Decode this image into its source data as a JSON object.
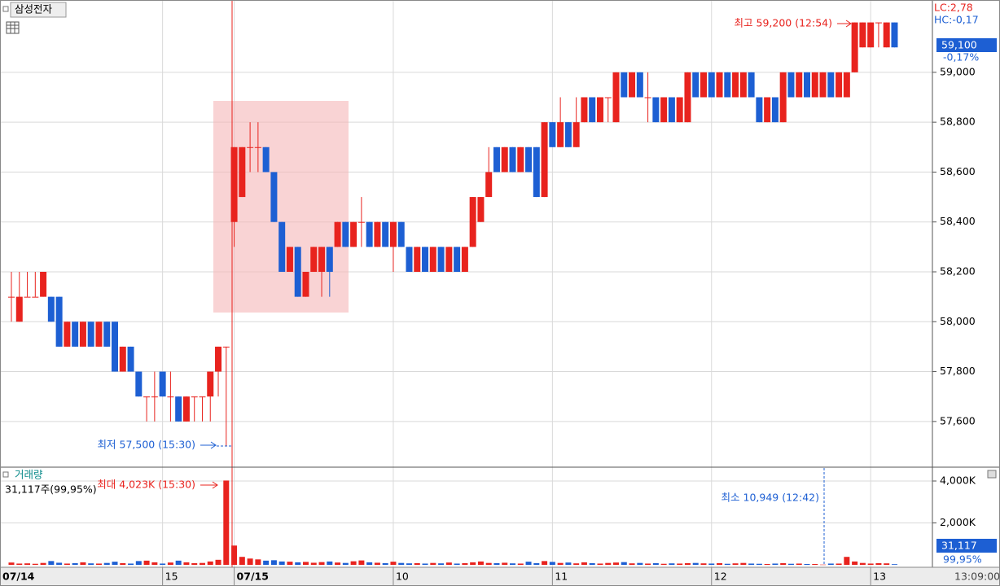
{
  "chart_data": [
    {
      "type": "candlestick",
      "title": "삼성전자",
      "legend": [
        "LC:2,78",
        "HC:-0,17"
      ],
      "last_price_label": "59,100",
      "change_label": "-0,17%",
      "cursor_time": "13:09:00",
      "high_annotation": "최고 59,200 (12:54)",
      "low_annotation": "최저 57,500 (15:30)",
      "up_color": "#e8231e",
      "down_color": "#1d5fd3",
      "categories": [
        "07/14",
        null,
        null,
        null,
        null,
        null,
        null,
        null,
        null,
        null,
        null,
        null,
        null,
        null,
        null,
        null,
        null,
        null,
        null,
        "15",
        null,
        null,
        null,
        null,
        null,
        null,
        null,
        null,
        "07/15",
        null,
        null,
        null,
        null,
        null,
        null,
        null,
        null,
        null,
        null,
        null,
        null,
        null,
        null,
        null,
        null,
        null,
        null,
        null,
        "10",
        null,
        null,
        null,
        null,
        null,
        null,
        null,
        null,
        null,
        null,
        null,
        null,
        null,
        null,
        null,
        null,
        null,
        null,
        null,
        "11",
        null,
        null,
        null,
        null,
        null,
        null,
        null,
        null,
        null,
        null,
        null,
        null,
        null,
        null,
        null,
        null,
        null,
        null,
        null,
        "12",
        null,
        null,
        null,
        null,
        null,
        null,
        null,
        null,
        null,
        null,
        null,
        null,
        null,
        null,
        null,
        null,
        null,
        null,
        null,
        "13",
        null,
        null,
        null
      ],
      "open": [
        58100,
        58000,
        58100,
        58100,
        58100,
        58100,
        58100,
        57900,
        58000,
        57900,
        58000,
        57900,
        58000,
        58000,
        57800,
        57900,
        57800,
        57700,
        57700,
        57800,
        57700,
        57700,
        57600,
        57700,
        57700,
        57700,
        57800,
        57900,
        58400,
        58500,
        58700,
        58700,
        58700,
        58600,
        58400,
        58200,
        58300,
        58100,
        58200,
        58200,
        58300,
        58300,
        58400,
        58300,
        58400,
        58400,
        58300,
        58400,
        58300,
        58400,
        58300,
        58200,
        58300,
        58200,
        58300,
        58200,
        58300,
        58200,
        58300,
        58400,
        58500,
        58700,
        58600,
        58700,
        58600,
        58700,
        58700,
        58500,
        58800,
        58700,
        58800,
        58700,
        58800,
        58900,
        58800,
        58900,
        58800,
        59000,
        58900,
        59000,
        58900,
        58900,
        58800,
        58900,
        58800,
        58800,
        59000,
        58900,
        59000,
        58900,
        59000,
        58900,
        58900,
        59000,
        58900,
        58800,
        58900,
        58800,
        59000,
        58900,
        59000,
        58900,
        58900,
        59000,
        58900,
        58900,
        59000,
        59100,
        59100,
        59200,
        59100,
        59200
      ],
      "high": [
        58200,
        58200,
        58200,
        58200,
        58200,
        58100,
        58100,
        58000,
        58000,
        58000,
        58000,
        58000,
        58000,
        58000,
        57900,
        57900,
        57800,
        57700,
        57800,
        57800,
        57800,
        57700,
        57700,
        57700,
        57700,
        57800,
        57900,
        57900,
        58700,
        58700,
        58800,
        58800,
        58700,
        58600,
        58400,
        58300,
        58300,
        58200,
        58300,
        58300,
        58300,
        58400,
        58400,
        58400,
        58500,
        58400,
        58400,
        58400,
        58400,
        58400,
        58300,
        58300,
        58300,
        58300,
        58300,
        58300,
        58300,
        58300,
        58500,
        58500,
        58700,
        58700,
        58700,
        58700,
        58700,
        58700,
        58700,
        58800,
        58800,
        58900,
        58800,
        58900,
        58900,
        58900,
        58900,
        58900,
        59000,
        59000,
        59000,
        59000,
        59000,
        58900,
        58900,
        58900,
        58900,
        59000,
        59000,
        59000,
        59000,
        59000,
        59000,
        59000,
        59000,
        59000,
        58900,
        58900,
        58900,
        59000,
        59000,
        59000,
        59000,
        59000,
        59000,
        59000,
        59000,
        59000,
        59200,
        59200,
        59200,
        59200,
        59200,
        59200
      ],
      "low": [
        58000,
        58000,
        58100,
        58100,
        58100,
        58000,
        57900,
        57900,
        57900,
        57900,
        57900,
        57900,
        57900,
        57800,
        57800,
        57800,
        57700,
        57600,
        57600,
        57700,
        57600,
        57600,
        57600,
        57600,
        57600,
        57600,
        57700,
        57500,
        58300,
        58500,
        58600,
        58600,
        58600,
        58400,
        58200,
        58200,
        58100,
        58100,
        58200,
        58100,
        58100,
        58300,
        58300,
        58300,
        58300,
        58300,
        58300,
        58300,
        58200,
        58300,
        58200,
        58200,
        58200,
        58200,
        58200,
        58200,
        58200,
        58200,
        58300,
        58400,
        58500,
        58600,
        58600,
        58600,
        58600,
        58600,
        58500,
        58500,
        58700,
        58700,
        58700,
        58700,
        58800,
        58800,
        58800,
        58800,
        58800,
        58900,
        58900,
        58900,
        58800,
        58800,
        58800,
        58800,
        58800,
        58800,
        58900,
        58900,
        58900,
        58900,
        58900,
        58900,
        58900,
        58900,
        58800,
        58800,
        58800,
        58800,
        58900,
        58900,
        58900,
        58900,
        58900,
        58900,
        58900,
        58900,
        59000,
        59100,
        59100,
        59100,
        59100,
        59100
      ],
      "close": [
        58100,
        58100,
        58100,
        58100,
        58200,
        58000,
        57900,
        58000,
        57900,
        58000,
        57900,
        58000,
        57900,
        57800,
        57900,
        57800,
        57700,
        57700,
        57700,
        57700,
        57700,
        57600,
        57700,
        57700,
        57700,
        57800,
        57900,
        57900,
        58700,
        58700,
        58700,
        58700,
        58600,
        58400,
        58200,
        58300,
        58100,
        58200,
        58300,
        58300,
        58200,
        58400,
        58300,
        58400,
        58400,
        58300,
        58400,
        58300,
        58400,
        58300,
        58200,
        58300,
        58200,
        58300,
        58200,
        58300,
        58200,
        58300,
        58500,
        58500,
        58600,
        58600,
        58700,
        58600,
        58700,
        58600,
        58500,
        58800,
        58700,
        58800,
        58700,
        58800,
        58900,
        58800,
        58900,
        58900,
        59000,
        58900,
        59000,
        58900,
        58900,
        58800,
        58900,
        58800,
        58900,
        59000,
        58900,
        59000,
        58900,
        59000,
        58900,
        59000,
        59000,
        58900,
        58800,
        58900,
        58800,
        59000,
        58900,
        59000,
        58900,
        59000,
        59000,
        58900,
        59000,
        59000,
        59200,
        59200,
        59200,
        59200,
        59200,
        59100
      ],
      "ylim": [
        57420,
        59290
      ],
      "yticks": [
        {
          "value": 57600,
          "label": "57,600"
        },
        {
          "value": 57800,
          "label": "57,800"
        },
        {
          "value": 58000,
          "label": "58,000"
        },
        {
          "value": 58200,
          "label": "58,200"
        },
        {
          "value": 58400,
          "label": "58,400"
        },
        {
          "value": 58600,
          "label": "58,600"
        },
        {
          "value": 58800,
          "label": "58,800"
        },
        {
          "value": 59000,
          "label": "59,000"
        }
      ],
      "grid": true
    },
    {
      "type": "bar",
      "title": "거래량",
      "info": "31,117주(99,95%)",
      "last_label": "31,117",
      "ratio_label": "99,95%",
      "max_annotation": "최대 4,023K (15:30)",
      "min_annotation": "최소 10,949 (12:42)",
      "values": [
        110,
        60,
        70,
        50,
        90,
        180,
        100,
        60,
        80,
        120,
        70,
        60,
        90,
        150,
        80,
        60,
        180,
        200,
        120,
        60,
        110,
        200,
        120,
        80,
        90,
        160,
        240,
        4023,
        920,
        380,
        300,
        260,
        200,
        220,
        160,
        150,
        120,
        140,
        100,
        130,
        160,
        110,
        90,
        170,
        210,
        120,
        100,
        80,
        150,
        90,
        70,
        80,
        60,
        90,
        70,
        110,
        60,
        80,
        120,
        160,
        90,
        80,
        100,
        70,
        60,
        150,
        80,
        180,
        140,
        90,
        110,
        70,
        120,
        80,
        60,
        90,
        110,
        130,
        70,
        90,
        60,
        80,
        50,
        70,
        60,
        80,
        90,
        70,
        60,
        80,
        50,
        70,
        90,
        60,
        50,
        40,
        60,
        80,
        50,
        60,
        40,
        40,
        10.949,
        60,
        60,
        380,
        160,
        90,
        60,
        80,
        70,
        31.117
      ],
      "ylim": [
        0,
        4544
      ],
      "yticks": [
        {
          "value": 2000,
          "label": "2,000K"
        },
        {
          "value": 4000,
          "label": "4,000K"
        }
      ],
      "grid": true
    }
  ]
}
